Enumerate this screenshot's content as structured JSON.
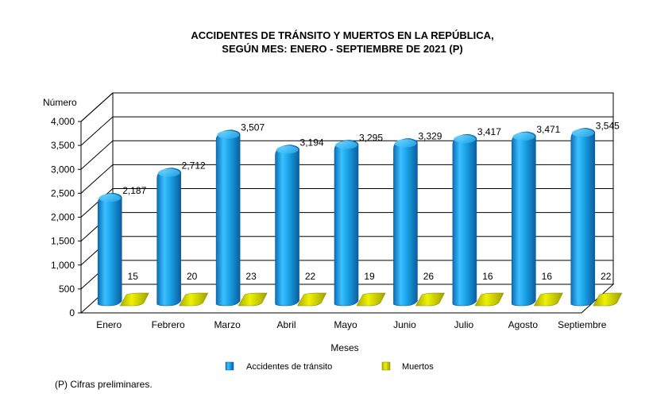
{
  "chart_data": {
    "type": "bar",
    "title_line1": "ACCIDENTES  DE TRÁNSITO Y MUERTOS EN LA REPÚBLICA,",
    "title_line2": "SEGÚN MES: ENERO  - SEPTIEMBRE   DE  2021 (P)",
    "xlabel": "Meses",
    "ylabel": "Número",
    "ylim": [
      0,
      4000
    ],
    "yticks": [
      "0",
      "500",
      "1,000",
      "1,500",
      "2,000",
      "2,500",
      "3,000",
      "3,500",
      "4,000"
    ],
    "categories": [
      "Enero",
      "Febrero",
      "Marzo",
      "Abril",
      "Mayo",
      "Junio",
      "Julio",
      "Agosto",
      "Septiembre"
    ],
    "series": [
      {
        "name": "Accidentes de tránsito",
        "color": "#1aa3e8",
        "values": [
          2187,
          2712,
          3507,
          3194,
          3295,
          3329,
          3417,
          3471,
          3545
        ],
        "labels": [
          "2,187",
          "2,712",
          "3,507",
          "3,194",
          "3,295",
          "3,329",
          "3,417",
          "3,471",
          "3,545"
        ]
      },
      {
        "name": "Muertos",
        "color": "#d8dc00",
        "values": [
          15,
          20,
          23,
          22,
          19,
          26,
          16,
          16,
          22
        ],
        "labels": [
          "15",
          "20",
          "23",
          "22",
          "19",
          "26",
          "16",
          "16",
          "22"
        ]
      }
    ],
    "grid": true,
    "legend": "bottom"
  },
  "footnote": "(P) Cifras preliminares."
}
